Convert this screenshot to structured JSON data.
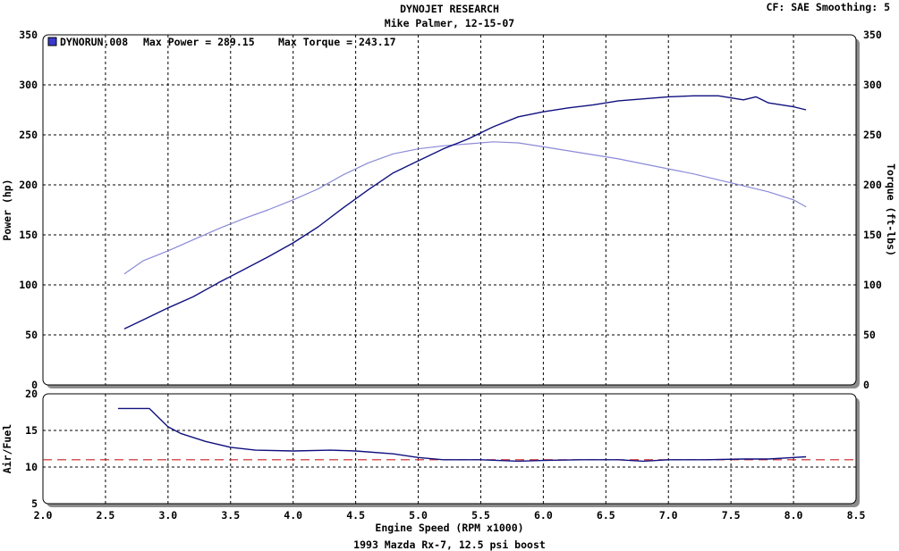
{
  "header": {
    "title": "DYNOJET RESEARCH",
    "subtitle": "Mike Palmer, 12-15-07",
    "cf_info": "CF: SAE  Smoothing: 5"
  },
  "footer": {
    "caption": "1993 Mazda Rx-7, 12.5 psi boost"
  },
  "colors": {
    "background": "#ffffff",
    "plot_background": "#ffffff",
    "power_line": "#101080",
    "torque_line": "#8a8ad8",
    "afr_line": "#101080",
    "afr_target_line": "#cc2020",
    "grid": "#000000",
    "legend_swatch": "#3a3ad0"
  },
  "chart_data": [
    {
      "type": "line",
      "legend": {
        "run": "DYNORUN.008",
        "max_power_label": "Max Power = 289.15",
        "max_torque_label": "Max Torque = 243.17",
        "placement": "top-left"
      },
      "ylabel": "Power (hp)",
      "y2label": "Torque (ft-lbs)",
      "xlim": [
        2.0,
        8.5
      ],
      "ylim": [
        0,
        350
      ],
      "y2lim": [
        0,
        350
      ],
      "yticks": [
        "0",
        "50",
        "100",
        "150",
        "200",
        "250",
        "300",
        "350"
      ],
      "grid": true,
      "series": [
        {
          "name": "Power",
          "axis": "left",
          "x": [
            2.65,
            2.8,
            3.0,
            3.2,
            3.4,
            3.6,
            3.8,
            4.0,
            4.2,
            4.4,
            4.6,
            4.8,
            5.0,
            5.2,
            5.4,
            5.6,
            5.8,
            6.0,
            6.2,
            6.4,
            6.6,
            6.8,
            7.0,
            7.2,
            7.4,
            7.6,
            7.7,
            7.8,
            8.0,
            8.1
          ],
          "values": [
            56,
            65,
            77,
            88,
            102,
            115,
            128,
            142,
            158,
            177,
            195,
            212,
            224,
            236,
            246,
            258,
            268,
            273,
            277,
            280,
            284,
            286,
            288,
            289,
            289,
            285,
            288,
            282,
            278,
            275
          ]
        },
        {
          "name": "Torque",
          "axis": "right",
          "x": [
            2.65,
            2.8,
            3.0,
            3.2,
            3.4,
            3.6,
            3.8,
            4.0,
            4.2,
            4.4,
            4.6,
            4.8,
            5.0,
            5.2,
            5.4,
            5.6,
            5.8,
            6.0,
            6.2,
            6.4,
            6.6,
            6.8,
            7.0,
            7.2,
            7.4,
            7.6,
            7.8,
            8.0,
            8.1
          ],
          "values": [
            111,
            124,
            134,
            145,
            156,
            166,
            175,
            185,
            196,
            210,
            222,
            231,
            236,
            239,
            241,
            243,
            242,
            238,
            234,
            230,
            226,
            221,
            216,
            211,
            205,
            199,
            193,
            185,
            178
          ]
        }
      ]
    },
    {
      "type": "line",
      "ylabel": "Air/Fuel",
      "xlabel": "Engine Speed (RPM x1000)",
      "xlim": [
        2.0,
        8.5
      ],
      "ylim": [
        5,
        20
      ],
      "yticks": [
        "5",
        "10",
        "15",
        "20"
      ],
      "xticks": [
        "2.0",
        "2.5",
        "3.0",
        "3.5",
        "4.0",
        "4.5",
        "5.0",
        "5.5",
        "6.0",
        "6.5",
        "7.0",
        "7.5",
        "8.0",
        "8.5"
      ],
      "grid": true,
      "target_afr": 11.0,
      "series": [
        {
          "name": "Air/Fuel",
          "x": [
            2.6,
            2.85,
            3.0,
            3.1,
            3.3,
            3.5,
            3.7,
            4.0,
            4.3,
            4.5,
            4.8,
            5.0,
            5.2,
            5.5,
            5.8,
            6.0,
            6.3,
            6.6,
            6.8,
            7.0,
            7.3,
            7.6,
            7.8,
            8.0,
            8.1
          ],
          "values": [
            18.0,
            18.0,
            15.5,
            14.6,
            13.5,
            12.7,
            12.3,
            12.2,
            12.3,
            12.2,
            11.8,
            11.3,
            11.0,
            11.0,
            10.8,
            10.9,
            11.0,
            11.0,
            10.8,
            11.0,
            11.0,
            11.1,
            11.1,
            11.3,
            11.4
          ]
        }
      ]
    }
  ]
}
